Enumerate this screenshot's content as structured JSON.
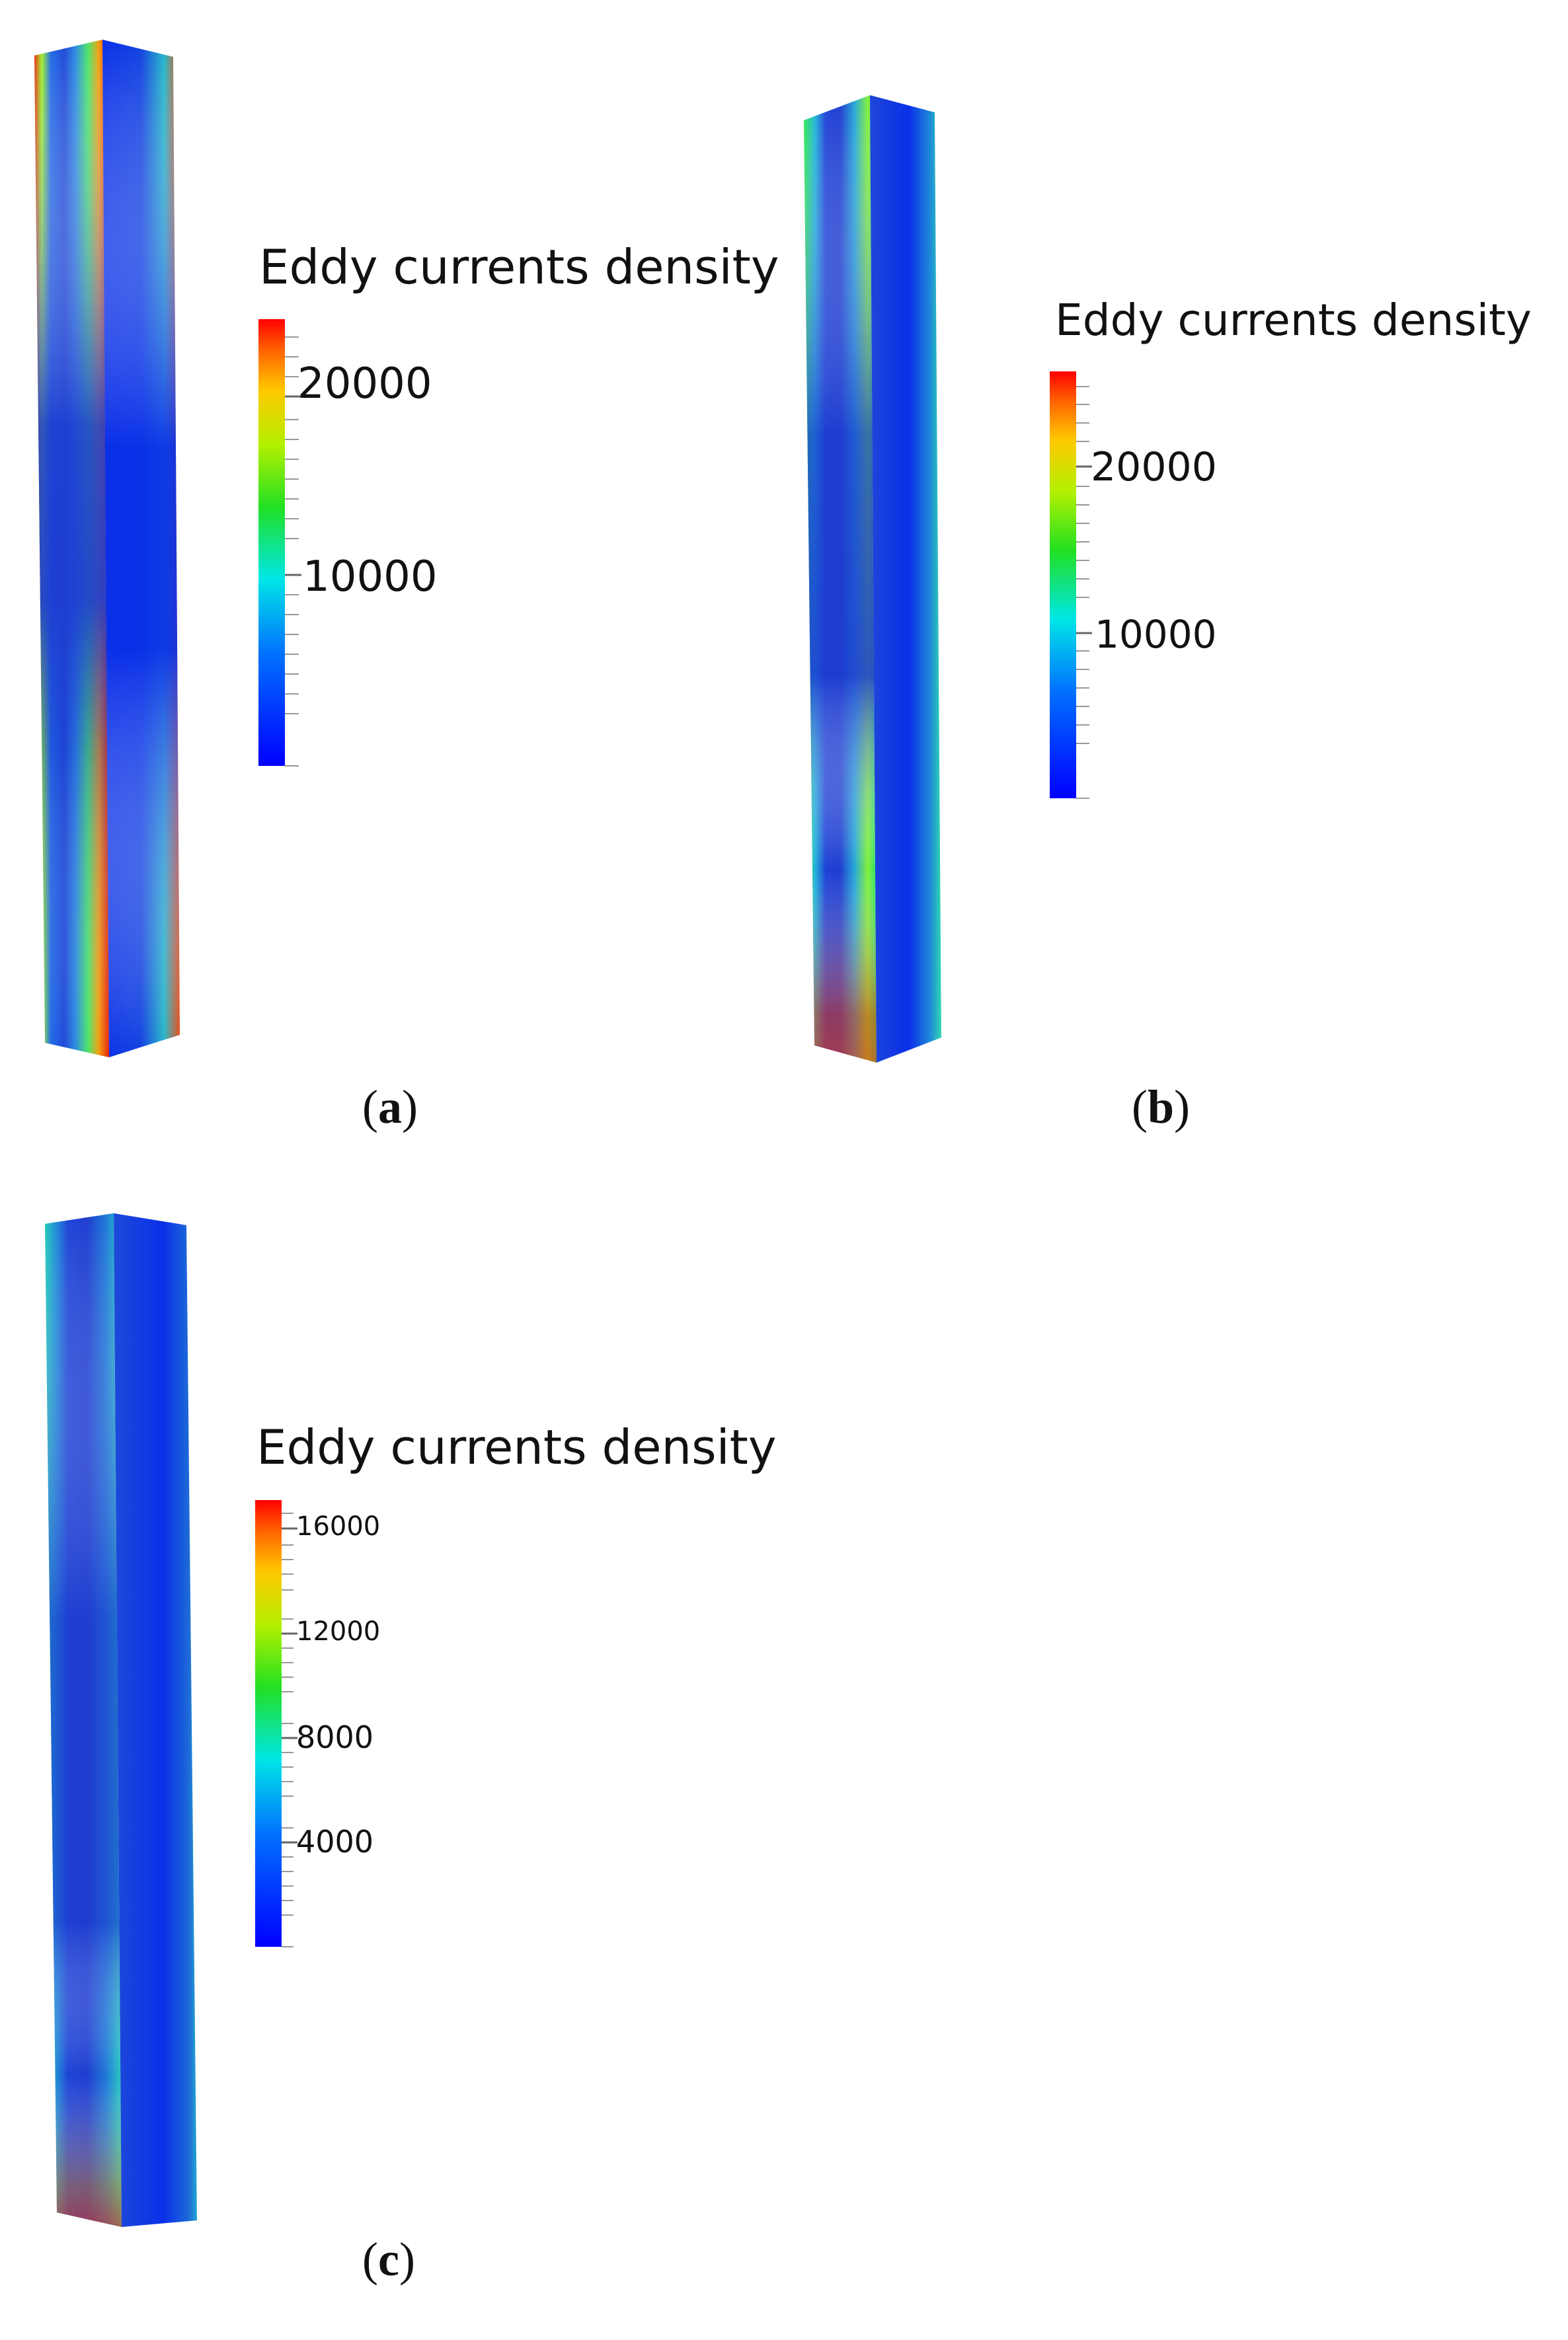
{
  "legend_title": "Eddy currents density",
  "captions": {
    "a": "a",
    "b": "b",
    "c": "c"
  },
  "panels": [
    {
      "id": "a",
      "colorbar_ticks": [
        "20000",
        "10000"
      ]
    },
    {
      "id": "b",
      "colorbar_ticks": [
        "20000",
        "10000"
      ]
    },
    {
      "id": "c",
      "colorbar_ticks": [
        "16000",
        "12000",
        "8000",
        "4000"
      ]
    }
  ],
  "colors": {
    "low": "#0000ff",
    "mid": "#00ff66",
    "high": "#ff0000"
  }
}
